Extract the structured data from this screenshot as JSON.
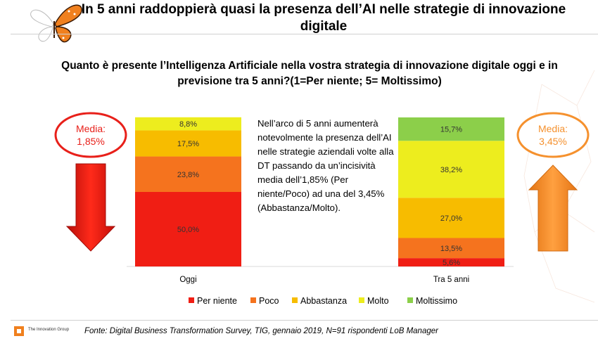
{
  "header": {
    "title": "In 5 anni raddoppierà quasi la presenza dell’AI nelle strategie di innovazione digitale",
    "subtitle": "Quanto è presente l’Intelligenza Artificiale nella vostra strategia di innovazione digitale oggi e in previsione tra 5 anni?(1=Per niente; 5= Moltissimo)"
  },
  "left_badge": {
    "label": "Media:",
    "value": "1,85%",
    "color": "#e8201a"
  },
  "right_badge": {
    "label": "Media:",
    "value": "3,45%",
    "color": "#f5912e"
  },
  "note": "Nell’arco di 5 anni aumenterà notevolmente la presenza dell’AI nelle strategie aziendali volte alla DT passando da un’incisività media dell’1,85% (Per niente/Poco) ad una del 3,45% (Abbastanza/Molto).",
  "footer": {
    "source": "Fonte: Digital Business Transformation Survey, TIG, gennaio 2019, N=91 rispondenti LoB Manager",
    "brand": "The Innovation Group"
  },
  "chart_data": {
    "type": "bar",
    "stacked": true,
    "percent_stacked": true,
    "categories": [
      "Oggi",
      "Tra 5 anni"
    ],
    "series": [
      {
        "name": "Per niente",
        "values": [
          50.0,
          5.6
        ],
        "labels": [
          "50,0%",
          "5,6%"
        ],
        "color": "#f01e14"
      },
      {
        "name": "Poco",
        "values": [
          23.8,
          13.5
        ],
        "labels": [
          "23,8%",
          "13,5%"
        ],
        "color": "#f5731e"
      },
      {
        "name": "Abbastanza",
        "values": [
          17.5,
          27.0
        ],
        "labels": [
          "17,5%",
          "27,0%"
        ],
        "color": "#f7bc00"
      },
      {
        "name": "Molto",
        "values": [
          8.8,
          38.2
        ],
        "labels": [
          "8,8%",
          "38,2%"
        ],
        "color": "#eded1e"
      },
      {
        "name": "Moltissimo",
        "values": [
          0,
          15.7
        ],
        "labels": [
          "",
          "15,7%"
        ],
        "color": "#8ccf4a"
      }
    ],
    "legend_position": "bottom",
    "grid": false
  }
}
